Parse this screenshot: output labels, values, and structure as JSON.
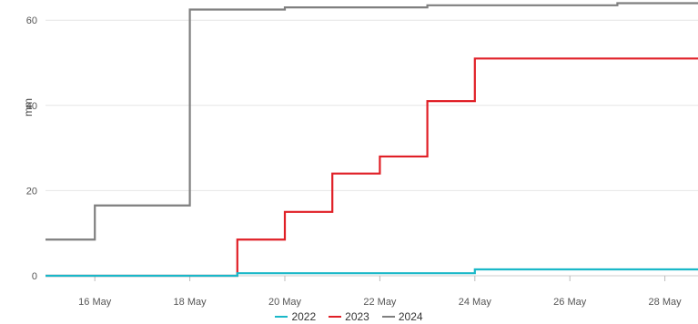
{
  "chart_data": {
    "type": "line",
    "step": true,
    "title": "",
    "xlabel": "",
    "ylabel": "mm",
    "x_dates": [
      "15 May",
      "16 May",
      "17 May",
      "18 May",
      "19 May",
      "20 May",
      "21 May",
      "22 May",
      "23 May",
      "24 May",
      "25 May",
      "26 May",
      "27 May",
      "28 May",
      "29 May"
    ],
    "x_ticks": [
      "16 May",
      "18 May",
      "20 May",
      "22 May",
      "24 May",
      "26 May",
      "28 May"
    ],
    "y_ticks": [
      "0",
      "20",
      "40",
      "60"
    ],
    "ylim": [
      0,
      65
    ],
    "grid": "horizontal",
    "legend_position": "bottom",
    "series": [
      {
        "name": "2022",
        "color": "#1ab8c8",
        "values": [
          0,
          0,
          0,
          0,
          0.6,
          0.6,
          0.6,
          0.6,
          0.6,
          1.5,
          1.5,
          1.5,
          1.5,
          1.5,
          1.5
        ]
      },
      {
        "name": "2023",
        "color": "#e01f26",
        "values": [
          0,
          0,
          0,
          0,
          8.5,
          15,
          24,
          28,
          41,
          51,
          51,
          51,
          51,
          51,
          51
        ]
      },
      {
        "name": "2024",
        "color": "#7f7f7f",
        "values": [
          8.5,
          16.5,
          16.5,
          62.5,
          62.5,
          63,
          63,
          63,
          63.5,
          63.5,
          63.5,
          63.5,
          64,
          64,
          64
        ]
      }
    ]
  }
}
